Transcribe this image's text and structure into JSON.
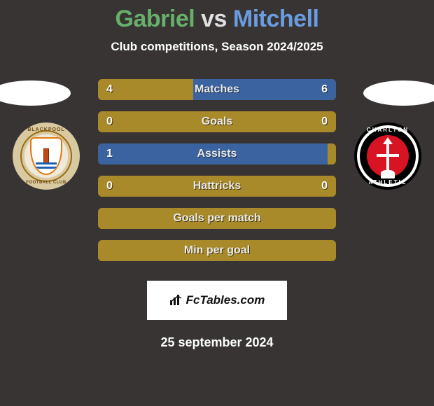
{
  "title": {
    "player1": "Gabriel",
    "player2": "Mitchell",
    "player1_color": "#66b06a",
    "player2_color": "#6a9de0",
    "vs_color": "#e0e0e0"
  },
  "subtitle": "Club competitions, Season 2024/2025",
  "crest_left": {
    "name": "Blackpool",
    "top_arc": "BLACKPOOL",
    "bottom_arc": "FOOTBALL CLUB"
  },
  "crest_right": {
    "name": "Charlton Athletic",
    "top_arc": "CHARLTON",
    "bottom_arc": "ATHLETIC"
  },
  "bars": [
    {
      "label": "Matches",
      "left_value": "4",
      "right_value": "6",
      "left_color": "#a98a2a",
      "right_color": "#3a63a0",
      "left_pct": 40,
      "right_pct": 60
    },
    {
      "label": "Goals",
      "left_value": "0",
      "right_value": "0",
      "left_color": "#a98a2a",
      "right_color": "#a98a2a",
      "left_pct": 50,
      "right_pct": 50
    },
    {
      "label": "Assists",
      "left_value": "1",
      "right_value": "",
      "left_color": "#3a63a0",
      "right_color": "#a98a2a",
      "left_pct": 100,
      "right_pct": 0
    },
    {
      "label": "Hattricks",
      "left_value": "0",
      "right_value": "0",
      "left_color": "#a98a2a",
      "right_color": "#a98a2a",
      "left_pct": 50,
      "right_pct": 50
    },
    {
      "label": "Goals per match",
      "left_value": "",
      "right_value": "",
      "left_color": "#a98a2a",
      "right_color": "#a98a2a",
      "left_pct": 50,
      "right_pct": 50
    },
    {
      "label": "Min per goal",
      "left_value": "",
      "right_value": "",
      "left_color": "#a98a2a",
      "right_color": "#a98a2a",
      "left_pct": 50,
      "right_pct": 50
    }
  ],
  "attribution": "FcTables.com",
  "date": "25 september 2024",
  "palette": {
    "background": "#383434",
    "bar_base": "#a98a2a",
    "bar_accent": "#3a63a0",
    "text_white": "#ffffff"
  }
}
